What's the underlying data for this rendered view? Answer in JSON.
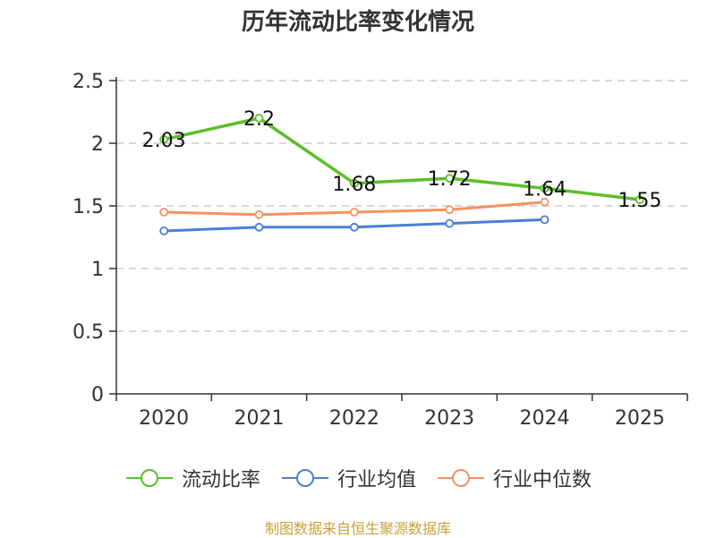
{
  "chart_data": {
    "type": "line",
    "title": "历年流动比率变化情况",
    "categories": [
      "2020",
      "2021",
      "2022",
      "2023",
      "2024",
      "2025"
    ],
    "ylim": [
      0,
      2.5
    ],
    "yticks": [
      "0",
      "0.5",
      "1",
      "1.5",
      "2",
      "2.5"
    ],
    "ytick_values": [
      0,
      0.5,
      1,
      1.5,
      2,
      2.5
    ],
    "grid": true,
    "legend_position": "bottom",
    "series": [
      {
        "name": "流动比率",
        "color": "#5cbf2a",
        "values": [
          2.03,
          2.2,
          1.68,
          1.72,
          1.64,
          1.55
        ],
        "labels": [
          "2.03",
          "2.2",
          "1.68",
          "1.72",
          "1.64",
          "1.55"
        ]
      },
      {
        "name": "行业均值",
        "color": "#4a7fd6",
        "values": [
          1.3,
          1.33,
          1.33,
          1.36,
          1.39,
          null
        ]
      },
      {
        "name": "行业中位数",
        "color": "#f5925e",
        "values": [
          1.45,
          1.43,
          1.45,
          1.47,
          1.53,
          null
        ]
      }
    ]
  },
  "source": "制图数据来自恒生聚源数据库"
}
